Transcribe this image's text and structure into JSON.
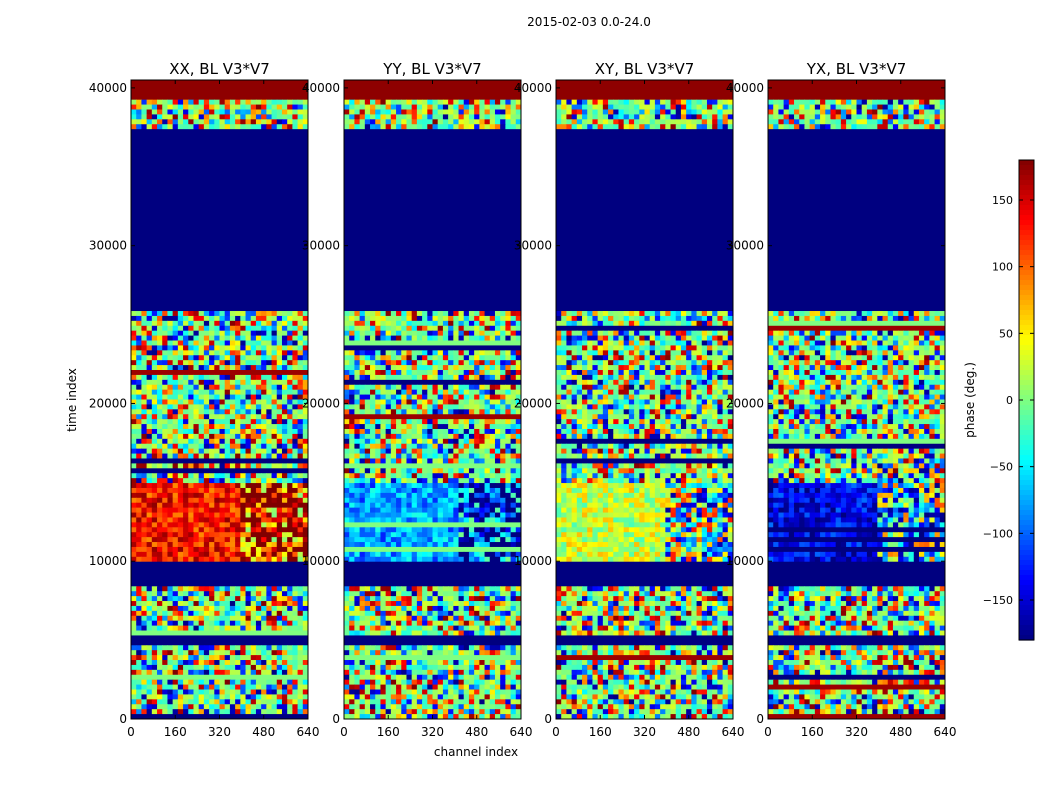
{
  "figure": {
    "suptitle": "2015-02-03 0.0-24.0"
  },
  "chart_data": {
    "type": "heatmap",
    "colormap": "jet",
    "xlabel": "channel index",
    "ylabel": "time index",
    "xlim": [
      0,
      640
    ],
    "ylim": [
      0,
      40500
    ],
    "x_ticks": [
      0,
      160,
      320,
      480,
      640
    ],
    "y_ticks": [
      0,
      10000,
      20000,
      30000,
      40000
    ],
    "panels": [
      {
        "title": "XX, BL V3*V7",
        "bias": 130,
        "bias_range": [
          10000,
          15000
        ],
        "bias_split": 400,
        "bias_right": 150
      },
      {
        "title": "YY, BL V3*V7",
        "bias": -80,
        "bias_range": [
          10000,
          15000
        ],
        "bias_split": 410,
        "bias_right": -150
      },
      {
        "title": "XY, BL V3*V7",
        "bias": 25,
        "bias_range": [
          10000,
          15000
        ],
        "bias_split": 400,
        "bias_right": -20
      },
      {
        "title": "YX, BL V3*V7",
        "bias": -140,
        "bias_range": [
          10000,
          15000
        ],
        "bias_split": 400,
        "bias_right": -40
      }
    ],
    "solid_bands": [
      {
        "from": 26000,
        "to": 37300,
        "value": -180
      },
      {
        "from": 8500,
        "to": 9900,
        "value": -180
      },
      {
        "from": 39300,
        "to": 40500,
        "value": 175
      },
      {
        "from": 4700,
        "to": 5200,
        "value": -180
      }
    ],
    "colorbar": {
      "label": "phase (deg.)",
      "ticks": [
        150,
        100,
        50,
        0,
        -50,
        -100,
        -150
      ],
      "tick_labels": [
        "150",
        "100",
        "50",
        "0",
        "−50",
        "−100",
        "−150"
      ],
      "range": [
        -180,
        180
      ]
    }
  }
}
